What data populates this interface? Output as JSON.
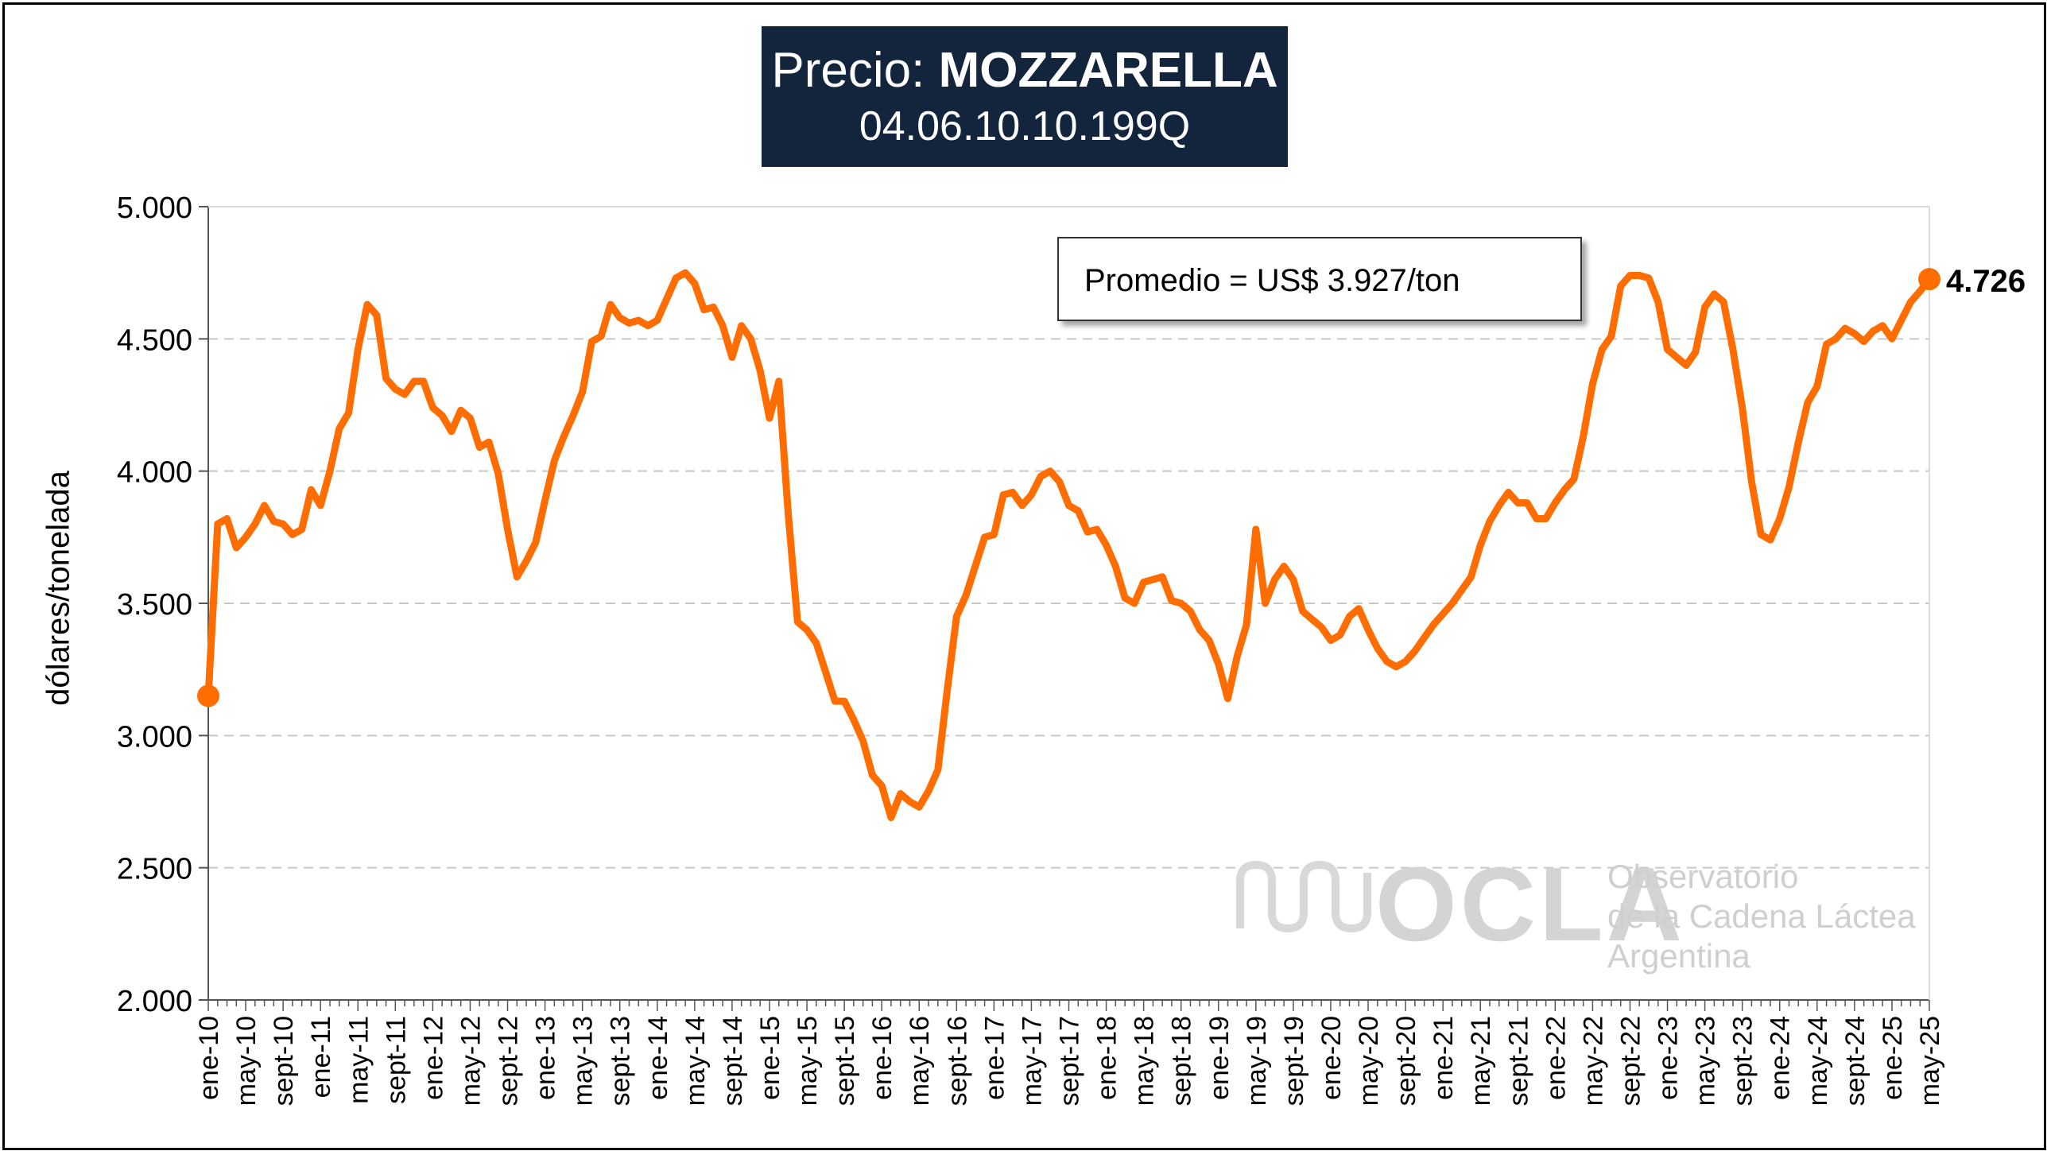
{
  "header": {
    "title_prefix": "Precio:",
    "title_product": "MOZZARELLA",
    "subtitle": "04.06.10.10.199Q"
  },
  "legend": {
    "average_text": "Promedio = US$ 3.927/ton"
  },
  "watermark": {
    "logo": "OCLA",
    "line1": "Observatorio",
    "line2": "de la Cadena Láctea",
    "line3": "Argentina"
  },
  "colors": {
    "series": "#ff6d00",
    "title_bg": "#13253d",
    "grid": "#c8c8c8"
  },
  "chart_data": {
    "type": "line",
    "ylabel": "dólares/tonelada",
    "ylim": [
      2000,
      5000
    ],
    "yticks": [
      "2.000",
      "2.500",
      "3.000",
      "3.500",
      "4.000",
      "4.500",
      "5.000"
    ],
    "yticks_values": [
      2000,
      2500,
      3000,
      3500,
      4000,
      4500,
      5000
    ],
    "grid": "horizontal dashed",
    "x_start": "ene-10",
    "x_tick_labels": [
      "ene-10",
      "may-10",
      "sept-10",
      "ene-11",
      "may-11",
      "sept-11",
      "ene-12",
      "may-12",
      "sept-12",
      "ene-13",
      "may-13",
      "sept-13",
      "ene-14",
      "may-14",
      "sept-14",
      "ene-15",
      "may-15",
      "sept-15",
      "ene-16",
      "may-16",
      "sept-16",
      "ene-17",
      "may-17",
      "sept-17",
      "ene-18",
      "may-18",
      "sept-18",
      "ene-19",
      "may-19",
      "sept-19",
      "ene-20",
      "may-20",
      "sept-20",
      "ene-21",
      "may-21",
      "sept-21",
      "ene-22",
      "may-22",
      "sept-22",
      "ene-23",
      "may-23",
      "sept-23",
      "ene-24",
      "may-24",
      "sept-24",
      "ene-25",
      "may-25"
    ],
    "last_value_label": "4.726",
    "series": [
      {
        "values": [
          3150,
          3800,
          3820,
          3710,
          3750,
          3800,
          3870,
          3810,
          3800,
          3760,
          3780,
          3930,
          3870,
          4000,
          4160,
          4220,
          4460,
          4630,
          4590,
          4350,
          4310,
          4290,
          4340,
          4340,
          4240,
          4210,
          4150,
          4230,
          4200,
          4090,
          4110,
          3990,
          3780,
          3600,
          3660,
          3730,
          3890,
          4040,
          4130,
          4210,
          4300,
          4490,
          4510,
          4630,
          4580,
          4560,
          4570,
          4550,
          4570,
          4650,
          4730,
          4750,
          4710,
          4610,
          4620,
          4550,
          4430,
          4550,
          4500,
          4380,
          4200,
          4340,
          3840,
          3430,
          3400,
          3350,
          3240,
          3130,
          3130,
          3060,
          2980,
          2850,
          2810,
          2690,
          2780,
          2750,
          2730,
          2790,
          2870,
          3170,
          3450,
          3530,
          3640,
          3750,
          3760,
          3910,
          3920,
          3870,
          3910,
          3980,
          4000,
          3960,
          3870,
          3850,
          3770,
          3780,
          3720,
          3640,
          3520,
          3500,
          3580,
          3590,
          3600,
          3510,
          3500,
          3470,
          3400,
          3360,
          3270,
          3140,
          3300,
          3420,
          3780,
          3500,
          3590,
          3640,
          3590,
          3470,
          3440,
          3410,
          3360,
          3380,
          3450,
          3480,
          3400,
          3330,
          3280,
          3260,
          3280,
          3320,
          3370,
          3420,
          3460,
          3500,
          3550,
          3600,
          3720,
          3810,
          3870,
          3920,
          3880,
          3880,
          3820,
          3820,
          3880,
          3930,
          3970,
          4130,
          4330,
          4460,
          4510,
          4700,
          4740,
          4740,
          4730,
          4640,
          4460,
          4430,
          4400,
          4450,
          4620,
          4670,
          4640,
          4460,
          4240,
          3960,
          3760,
          3740,
          3820,
          3940,
          4110,
          4260,
          4320,
          4480,
          4500,
          4540,
          4520,
          4490,
          4530,
          4550,
          4500,
          4570,
          4640,
          4680,
          4726
        ]
      }
    ]
  }
}
